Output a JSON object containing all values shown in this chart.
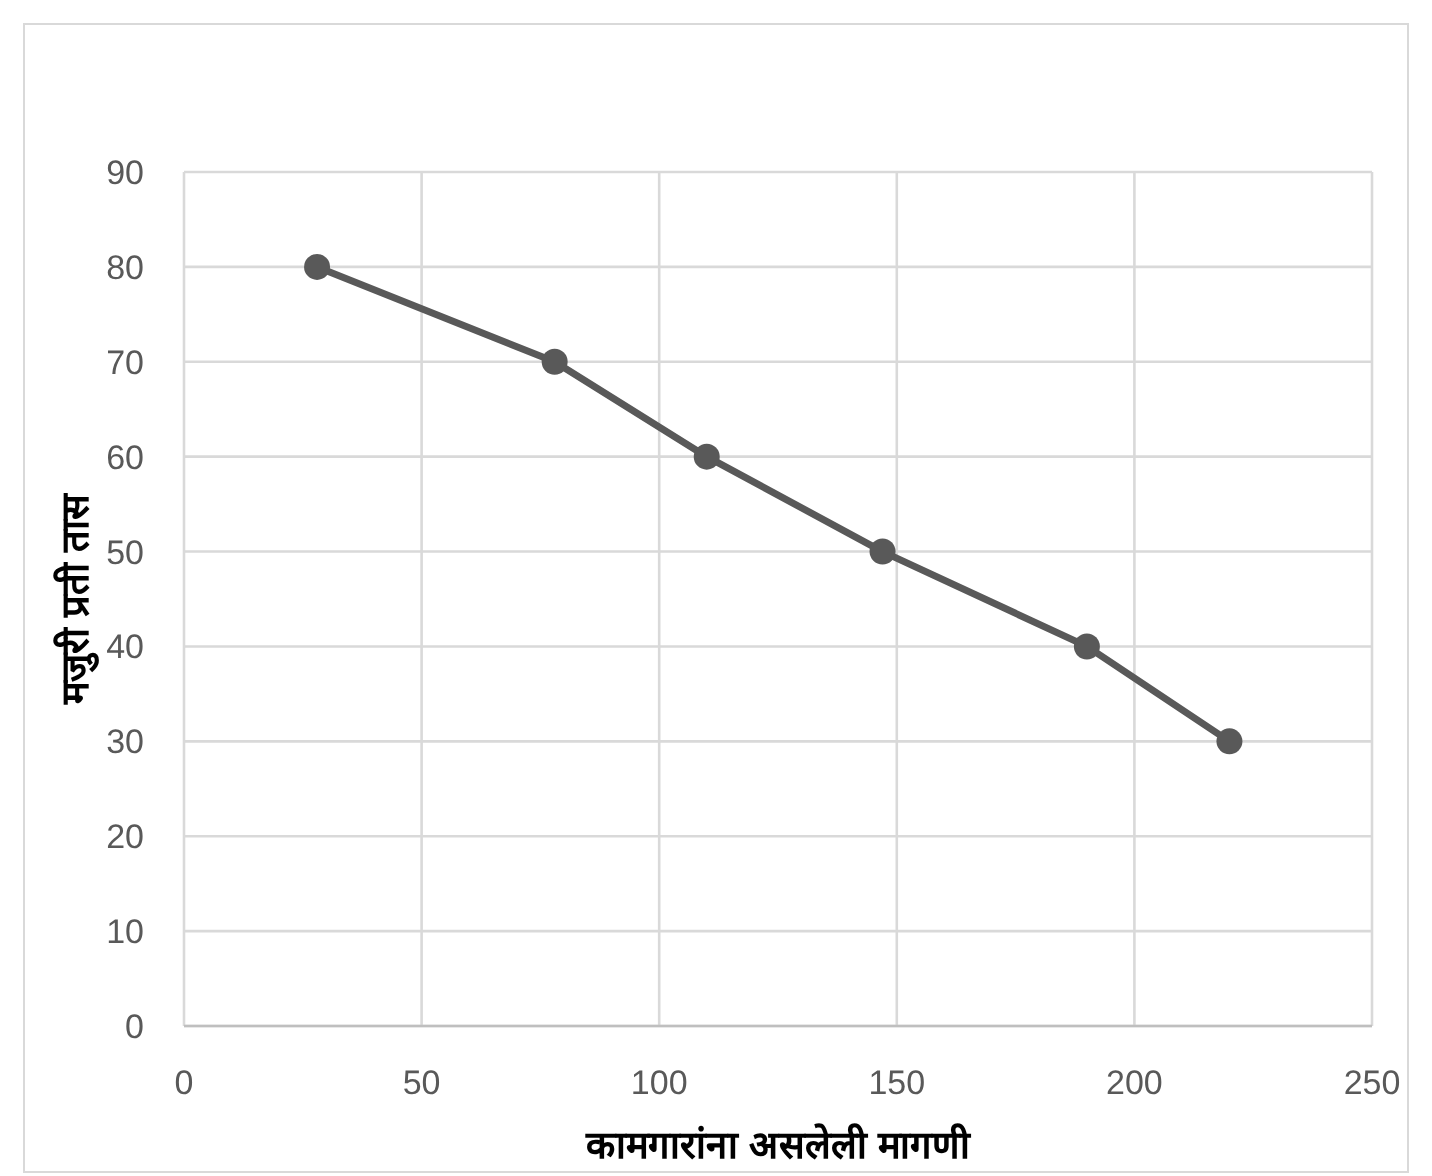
{
  "chart_data": {
    "type": "line",
    "xlabel": "कामगारांना असलेली मागणी",
    "ylabel": "मजुरी प्रती तास",
    "x": [
      28,
      78,
      110,
      147,
      190,
      220
    ],
    "series": [
      {
        "color": "#595959",
        "values": [
          80,
          70,
          60,
          50,
          40,
          30
        ]
      }
    ],
    "xlim": [
      0,
      250
    ],
    "xticks": [
      0,
      50,
      100,
      150,
      200,
      250
    ],
    "ylim": [
      0,
      90
    ],
    "yticks": [
      0,
      10,
      20,
      30,
      40,
      50,
      60,
      70,
      80,
      90
    ],
    "grid": true,
    "marker": "circle",
    "line_style": "solid"
  }
}
